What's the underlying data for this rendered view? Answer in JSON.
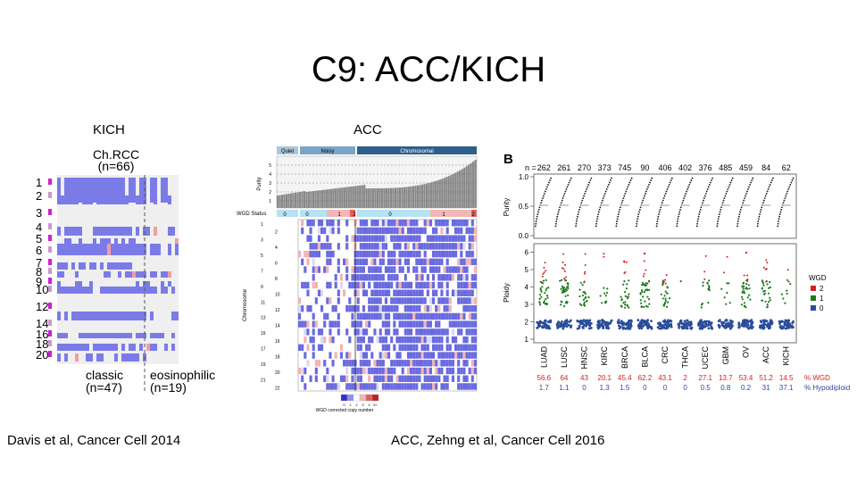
{
  "slide": {
    "title": "C9: ACC/KICH",
    "label_left": "KICH",
    "label_mid": "ACC",
    "citation_left": "Davis et al, Cancer Cell 2014",
    "citation_right": "ACC, Zehng et al, Cancer Cell 2016"
  },
  "kich_fig": {
    "header_line1": "Ch.RCC",
    "header_line2": "(n=66)",
    "chromosomes": [
      "1",
      "2",
      "3",
      "4",
      "5",
      "6",
      "7",
      "8",
      "9",
      "10",
      "12",
      "14",
      "16",
      "18",
      "20"
    ],
    "group_classic": "classic",
    "group_classic_n": "(n=47)",
    "group_eos": "eosinophilic",
    "group_eos_n": "(n=19)"
  },
  "acc_fig": {
    "cluster_labels": [
      "Quiet",
      "Noisy",
      "Chromosomal"
    ],
    "purity_label": "Purity",
    "purity_ticks": [
      "1",
      "2",
      "3",
      "4",
      "5"
    ],
    "wgd_status_label": "WGD Status",
    "wgd_values": [
      "0",
      "0",
      "1",
      "2",
      "0",
      "1",
      "2"
    ],
    "chromosome_axis_label": "Chromosome",
    "chromosomes": [
      "1",
      "2",
      "3",
      "4",
      "5",
      "6",
      "7",
      "8",
      "9",
      "10",
      "11",
      "12",
      "13",
      "14",
      "15",
      "16",
      "17",
      "18",
      "19",
      "20",
      "21",
      "22"
    ],
    "legend_scale": [
      "0",
      "1",
      "2",
      "3",
      "4",
      "5+"
    ],
    "legend_title": "WGD corrected copy number"
  },
  "panel_b": {
    "panel_letter": "B",
    "n_prefix": "n =",
    "n_values": [
      "262",
      "261",
      "270",
      "373",
      "745",
      "90",
      "406",
      "402",
      "376",
      "485",
      "459",
      "84",
      "62"
    ],
    "purity_label": "Purity",
    "purity_ticks": [
      "0.0",
      "0.5",
      "1.0"
    ],
    "ploidy_label": "Ploidy",
    "ploidy_ticks": [
      "1",
      "2",
      "3",
      "4",
      "5",
      "6"
    ],
    "cancer_types": [
      "LUAD",
      "LUSC",
      "HNSC",
      "KIRC",
      "BRCA",
      "BLCA",
      "CRC",
      "THCA",
      "UCEC",
      "GBM",
      "OV",
      "ACC",
      "KICH"
    ],
    "pct_wgd": [
      "56.6",
      "64",
      "43",
      "20.1",
      "45.4",
      "62.2",
      "43.1",
      "2",
      "27.1",
      "13.7",
      "53.4",
      "51.2",
      "14.5"
    ],
    "pct_hypo": [
      "1.7",
      "1.1",
      "0",
      "1.3",
      "1.5",
      "0",
      "0",
      "0",
      "0.5",
      "0.8",
      "0.2",
      "31",
      "37.1"
    ],
    "pct_wgd_label": "% WGD",
    "pct_hypo_label": "% Hypodiploid",
    "legend_title": "WGD",
    "legend_items": [
      {
        "label": "2",
        "color": "#d42020"
      },
      {
        "label": "1",
        "color": "#1f7a1f"
      },
      {
        "label": "0",
        "color": "#2a4d9a"
      }
    ]
  }
}
